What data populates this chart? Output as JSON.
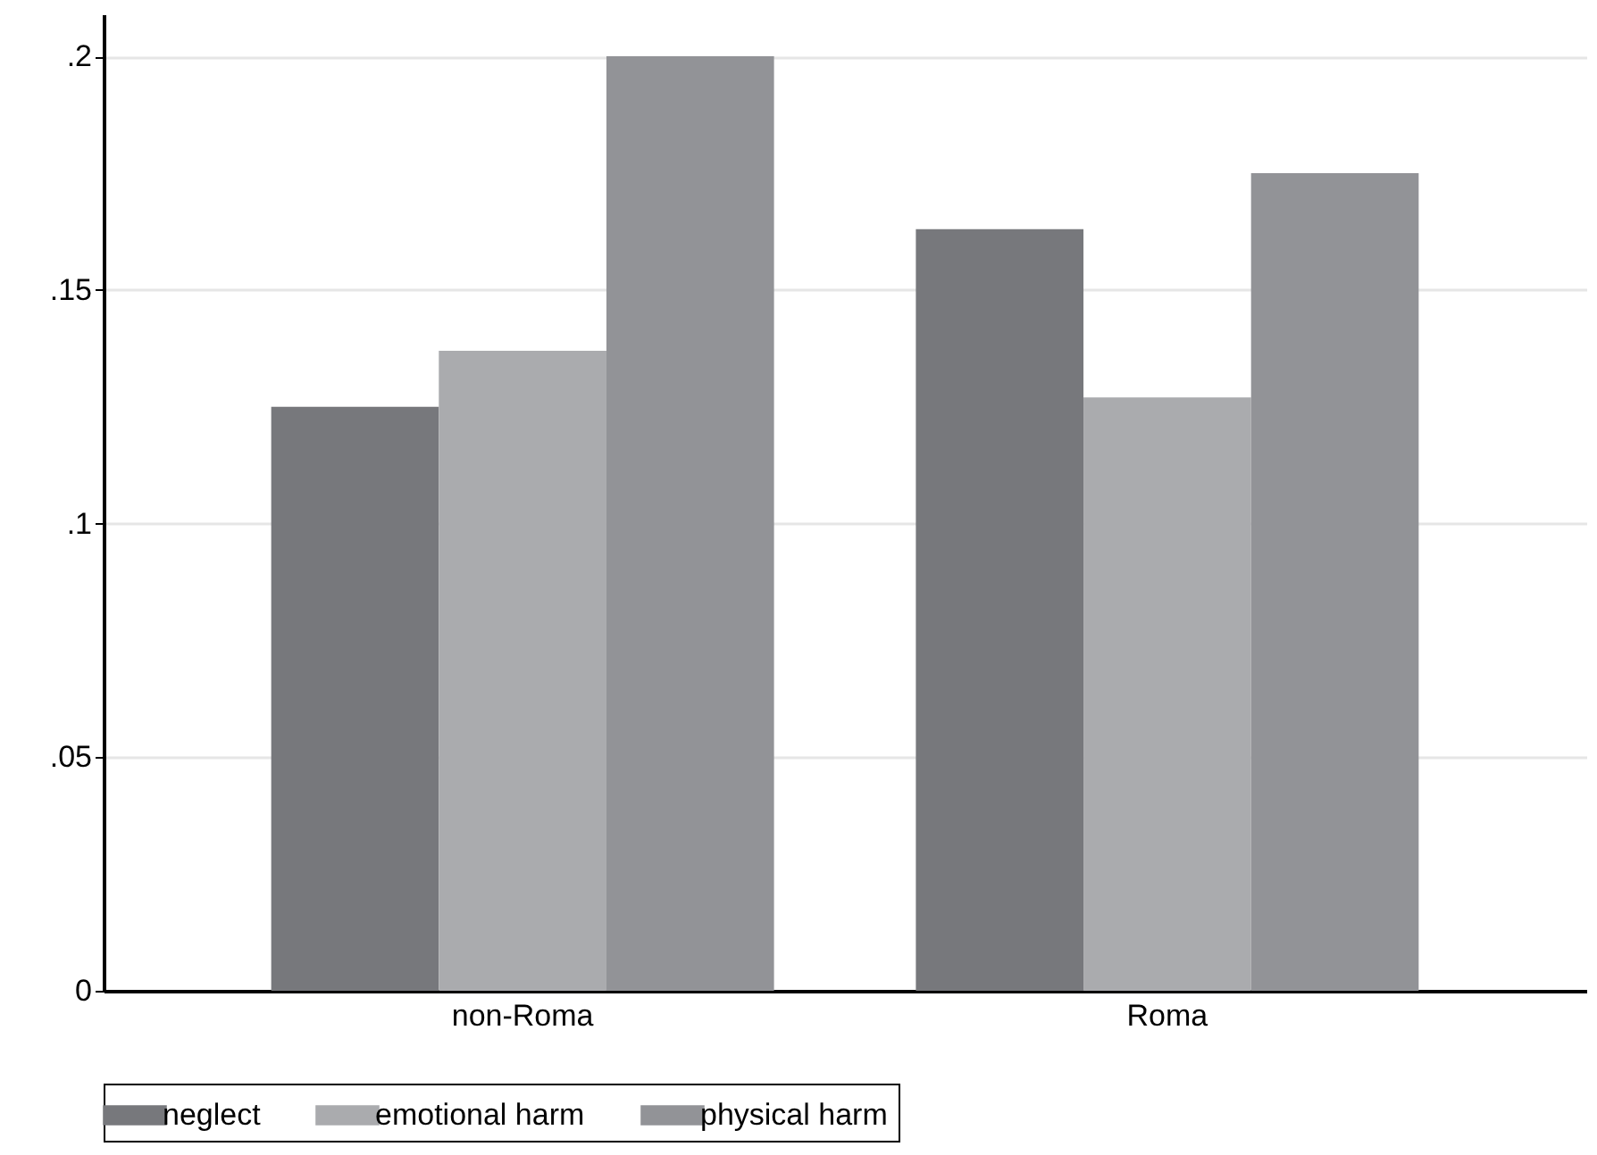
{
  "chart_data": {
    "type": "bar",
    "categories": [
      "non-Roma",
      "Roma"
    ],
    "series": [
      {
        "name": "neglect",
        "color": "#77787c",
        "values": [
          0.125,
          0.163
        ]
      },
      {
        "name": "emotional harm",
        "color": "#aaabae",
        "values": [
          0.137,
          0.127
        ]
      },
      {
        "name": "physical harm",
        "color": "#929397",
        "values": [
          0.2,
          0.175
        ]
      }
    ],
    "ylim": [
      0,
      0.209
    ],
    "yticks": [
      0,
      {
        "value": 0.05,
        "label": ".05"
      },
      {
        "value": 0.1,
        "label": ".1"
      },
      {
        "value": 0.15,
        "label": ".15"
      },
      {
        "value": 0.2,
        "label": ".2"
      }
    ],
    "grid": "y",
    "legend": "bottom"
  }
}
